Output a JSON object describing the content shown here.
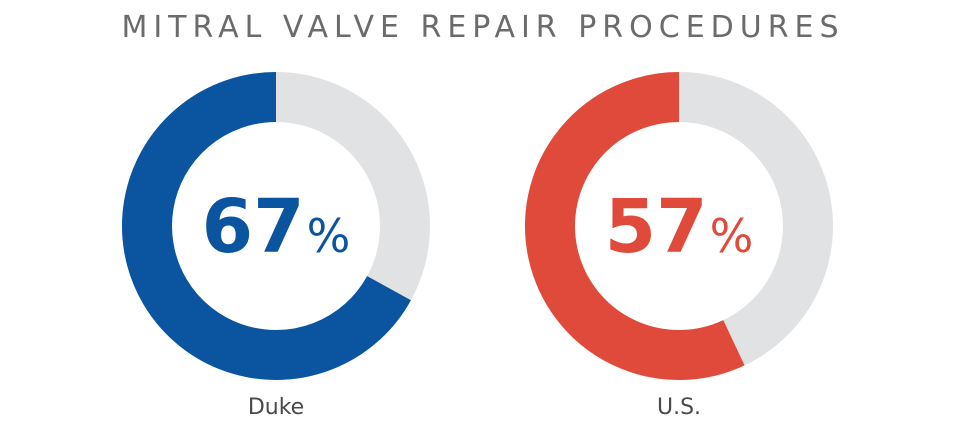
{
  "chart_data": {
    "type": "pie",
    "title": "MITRAL VALVE REPAIR PROCEDURES",
    "categories": [
      "Duke",
      "U.S."
    ],
    "values": [
      67,
      57
    ],
    "unit": "%",
    "colors": {
      "Duke": "#0a54a0",
      "U.S.": "#e04a3a",
      "remainder": "#e1e2e4"
    }
  }
}
